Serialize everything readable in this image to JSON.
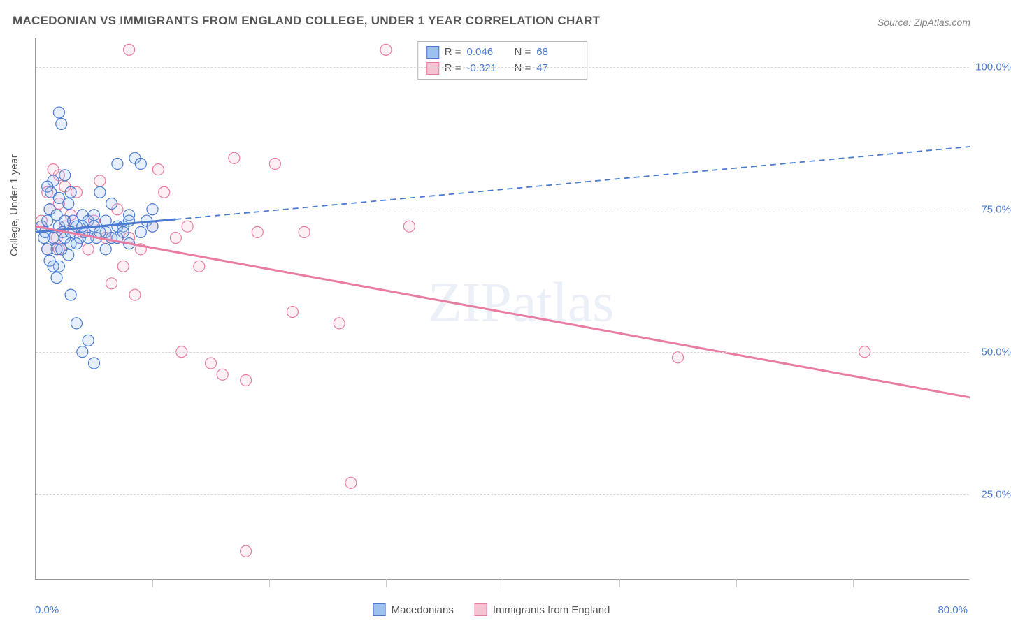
{
  "title": "MACEDONIAN VS IMMIGRANTS FROM ENGLAND COLLEGE, UNDER 1 YEAR CORRELATION CHART",
  "source": "Source: ZipAtlas.com",
  "watermark": "ZIPatlas",
  "y_axis_title": "College, Under 1 year",
  "x_axis": {
    "min": 0,
    "max": 80,
    "left_label": "0.0%",
    "right_label": "80.0%",
    "ticks": [
      10,
      20,
      30,
      40,
      50,
      60,
      70
    ]
  },
  "y_axis": {
    "min": 10,
    "max": 105,
    "ticks": [
      {
        "v": 25,
        "label": "25.0%"
      },
      {
        "v": 50,
        "label": "50.0%"
      },
      {
        "v": 75,
        "label": "75.0%"
      },
      {
        "v": 100,
        "label": "100.0%"
      }
    ]
  },
  "series": {
    "blue": {
      "name": "Macedonians",
      "color_fill": "#9cc1ef",
      "color_stroke": "#4a7bd0",
      "R": "0.046",
      "N": "68",
      "trend": {
        "x1": 0,
        "y1": 71,
        "x2": 80,
        "y2": 86,
        "solid_until_x": 12
      },
      "points": [
        [
          0.5,
          72
        ],
        [
          0.7,
          70
        ],
        [
          0.8,
          71
        ],
        [
          1.0,
          68
        ],
        [
          1.0,
          73
        ],
        [
          1.2,
          66
        ],
        [
          1.2,
          75
        ],
        [
          1.3,
          78
        ],
        [
          1.5,
          70
        ],
        [
          1.5,
          80
        ],
        [
          1.8,
          74
        ],
        [
          1.8,
          68
        ],
        [
          2.0,
          72
        ],
        [
          2.0,
          65
        ],
        [
          2.0,
          92
        ],
        [
          2.2,
          90
        ],
        [
          2.3,
          71
        ],
        [
          2.5,
          81
        ],
        [
          2.5,
          70
        ],
        [
          2.8,
          67
        ],
        [
          2.8,
          76
        ],
        [
          3.0,
          78
        ],
        [
          3.0,
          69
        ],
        [
          3.0,
          60
        ],
        [
          3.2,
          73
        ],
        [
          3.5,
          72
        ],
        [
          3.5,
          55
        ],
        [
          3.8,
          70
        ],
        [
          4.0,
          74
        ],
        [
          4.0,
          50
        ],
        [
          4.2,
          71
        ],
        [
          4.5,
          52
        ],
        [
          4.5,
          73
        ],
        [
          5.0,
          72
        ],
        [
          5.0,
          48
        ],
        [
          5.2,
          70
        ],
        [
          5.5,
          78
        ],
        [
          6.0,
          71
        ],
        [
          6.0,
          68
        ],
        [
          6.5,
          76
        ],
        [
          7.0,
          70
        ],
        [
          7.0,
          83
        ],
        [
          7.5,
          72
        ],
        [
          8.0,
          74
        ],
        [
          8.0,
          69
        ],
        [
          8.5,
          84
        ],
        [
          9.0,
          71
        ],
        [
          9.0,
          83
        ],
        [
          9.5,
          73
        ],
        [
          10.0,
          72
        ],
        [
          10.0,
          75
        ],
        [
          1.0,
          79
        ],
        [
          1.5,
          65
        ],
        [
          2.0,
          77
        ],
        [
          2.5,
          73
        ],
        [
          3.0,
          71
        ],
        [
          3.5,
          69
        ],
        [
          4.0,
          72
        ],
        [
          4.5,
          70
        ],
        [
          5.0,
          74
        ],
        [
          5.5,
          71
        ],
        [
          6.0,
          73
        ],
        [
          6.5,
          70
        ],
        [
          7.0,
          72
        ],
        [
          7.5,
          71
        ],
        [
          8.0,
          73
        ],
        [
          1.8,
          63
        ],
        [
          2.2,
          68
        ]
      ]
    },
    "pink": {
      "name": "Immigrants from England",
      "color_fill": "#f5c4d2",
      "color_stroke": "#e87ca3",
      "R": "-0.321",
      "N": "47",
      "trend": {
        "x1": 0,
        "y1": 72,
        "x2": 80,
        "y2": 42,
        "solid_until_x": 80
      },
      "points": [
        [
          0.5,
          73
        ],
        [
          1.0,
          78
        ],
        [
          1.2,
          75
        ],
        [
          1.5,
          82
        ],
        [
          1.8,
          70
        ],
        [
          2.0,
          76
        ],
        [
          2.0,
          81
        ],
        [
          2.5,
          79
        ],
        [
          2.5,
          72
        ],
        [
          3.0,
          74
        ],
        [
          3.5,
          78
        ],
        [
          4.0,
          71
        ],
        [
          4.5,
          68
        ],
        [
          5.0,
          73
        ],
        [
          5.5,
          80
        ],
        [
          6.0,
          70
        ],
        [
          6.5,
          62
        ],
        [
          7.0,
          75
        ],
        [
          7.5,
          65
        ],
        [
          8.0,
          70
        ],
        [
          8.0,
          103
        ],
        [
          8.5,
          60
        ],
        [
          9.0,
          68
        ],
        [
          10.0,
          72
        ],
        [
          10.5,
          82
        ],
        [
          11.0,
          78
        ],
        [
          12.0,
          70
        ],
        [
          12.5,
          50
        ],
        [
          13.0,
          72
        ],
        [
          14.0,
          65
        ],
        [
          15.0,
          48
        ],
        [
          16.0,
          46
        ],
        [
          17.0,
          84
        ],
        [
          18.0,
          45
        ],
        [
          19.0,
          71
        ],
        [
          20.5,
          83
        ],
        [
          22.0,
          57
        ],
        [
          23.0,
          71
        ],
        [
          26.0,
          55
        ],
        [
          27.0,
          27
        ],
        [
          30.0,
          103
        ],
        [
          32.0,
          72
        ],
        [
          18.0,
          15
        ],
        [
          55.0,
          49
        ],
        [
          71.0,
          50
        ],
        [
          1.0,
          68
        ],
        [
          2.0,
          68
        ]
      ]
    }
  },
  "stats_box_labels": {
    "R": "R =",
    "N": "N ="
  },
  "legend_labels": {
    "blue": "Macedonians",
    "pink": "Immigrants from England"
  },
  "marker_radius": 8
}
